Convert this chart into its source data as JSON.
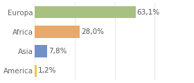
{
  "categories": [
    "America",
    "Asia",
    "Africa",
    "Europa"
  ],
  "values": [
    1.2,
    7.8,
    28.0,
    63.1
  ],
  "bar_colors": [
    "#e8c84a",
    "#7090c8",
    "#e8a96a",
    "#a8c080"
  ],
  "labels": [
    "1,2%",
    "7,8%",
    "28,0%",
    "63,1%"
  ],
  "background_color": "#ffffff",
  "xlim": [
    0,
    85
  ],
  "bar_height": 0.62,
  "label_fontsize": 7.5,
  "tick_fontsize": 7.5,
  "label_color": "#555555",
  "tick_color": "#666666",
  "grid_color": "#dddddd"
}
